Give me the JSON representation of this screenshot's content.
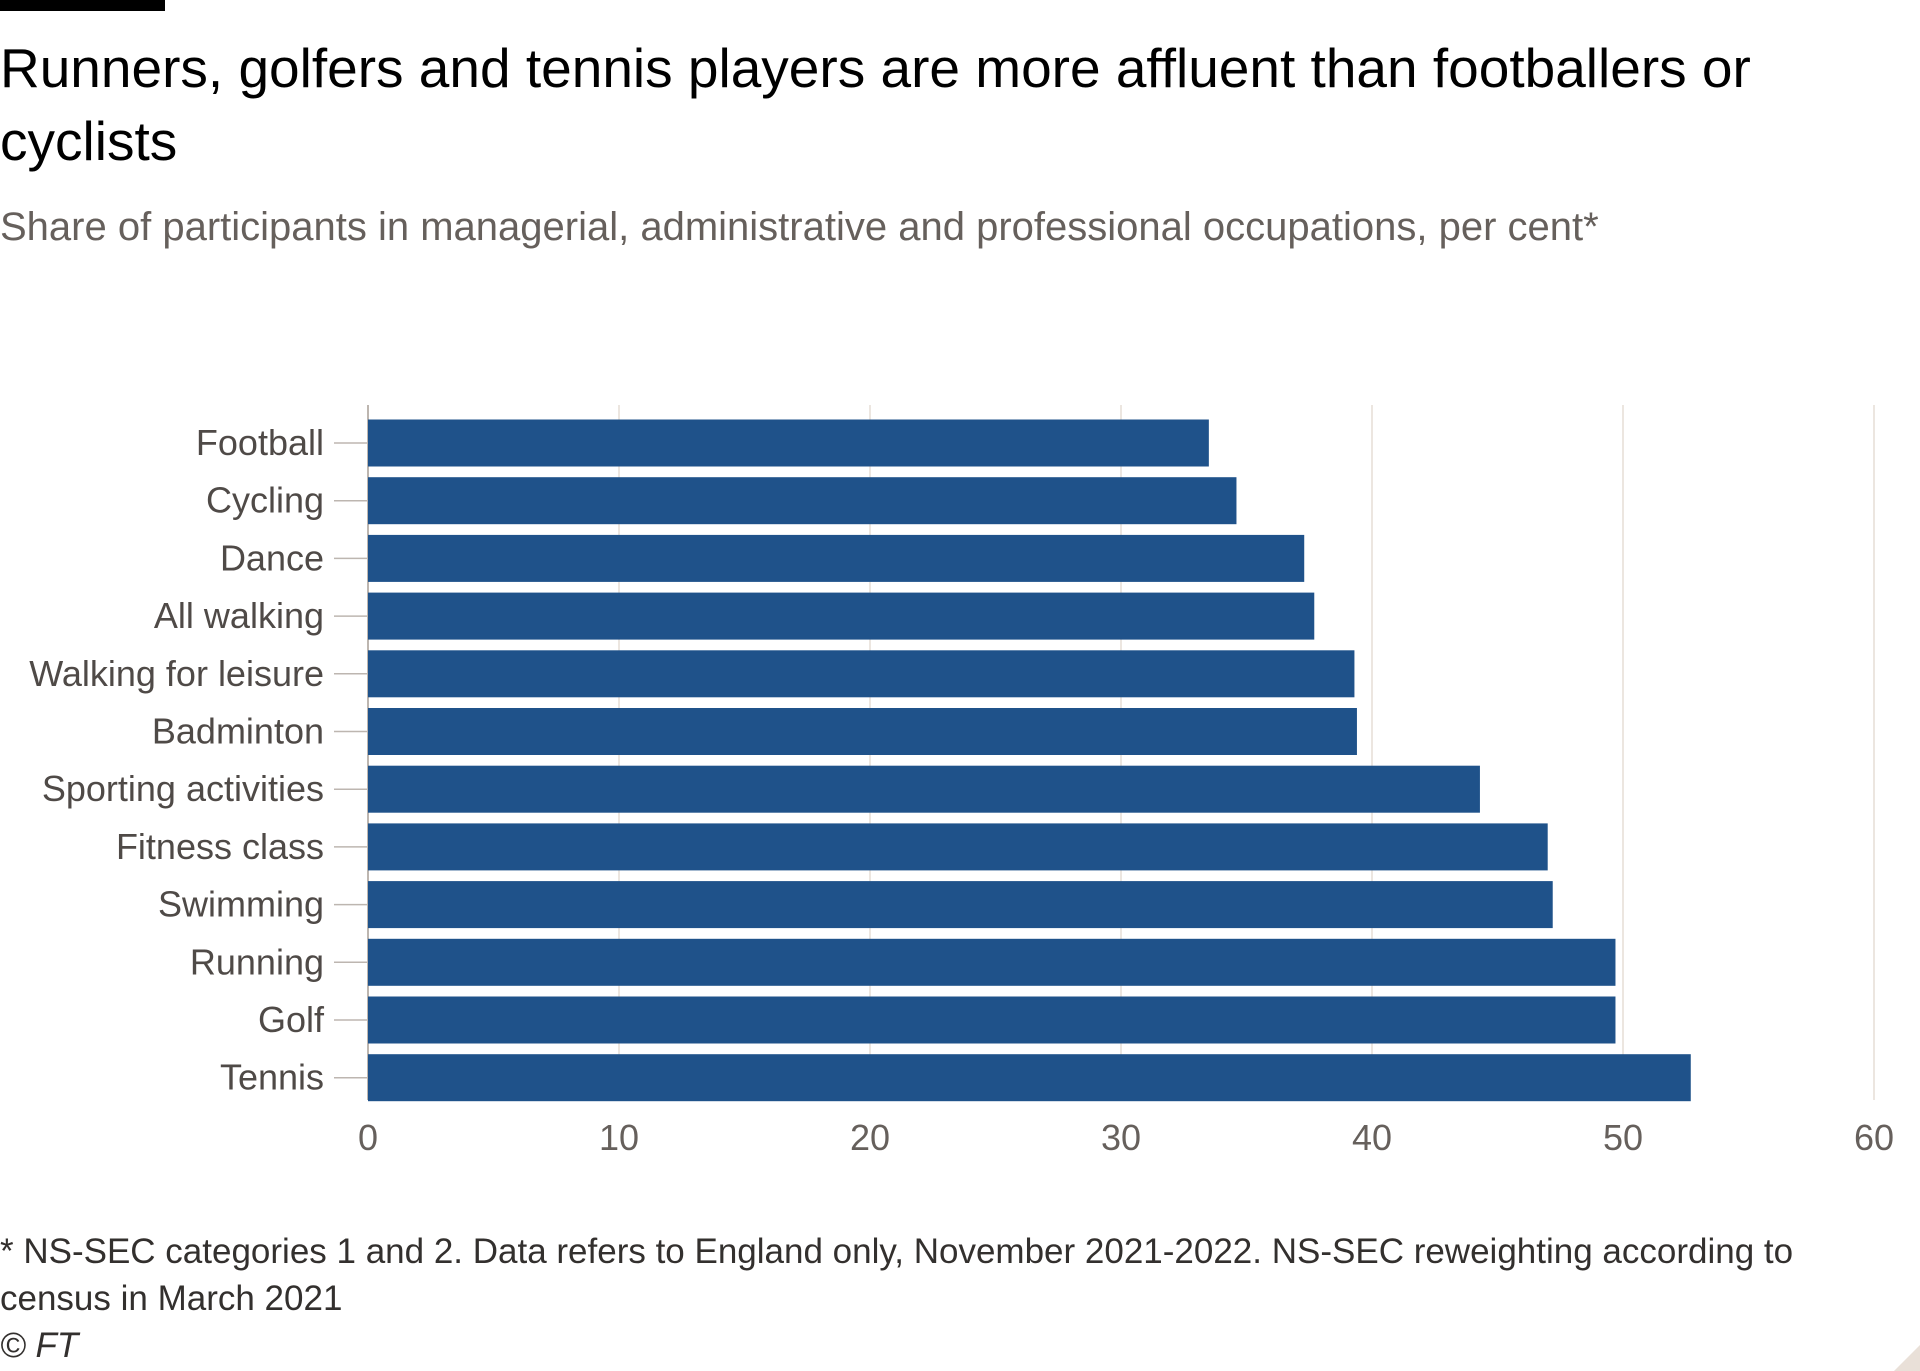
{
  "header": {
    "title": "Runners, golfers and tennis players are more affluent than footballers or cyclists",
    "subtitle": "Share of participants in managerial, administrative and professional occupations, per cent*"
  },
  "footer": {
    "note_line1": "* NS-SEC categories 1 and 2. Data refers to England only, November 2021-2022. NS-SEC reweighting according to",
    "note_line2": "census in March 2021",
    "source": "© FT"
  },
  "colors": {
    "bar": "#1f528a",
    "grid": "#e6ddd5",
    "tick": "#bdb6b0",
    "axis_text": "#66605c",
    "category_text": "#4f4a47"
  },
  "chart_data": {
    "type": "bar",
    "orientation": "horizontal",
    "categories": [
      "Football",
      "Cycling",
      "Dance",
      "All walking",
      "Walking for leisure",
      "Badminton",
      "Sporting activities",
      "Fitness class",
      "Swimming",
      "Running",
      "Golf",
      "Tennis"
    ],
    "values": [
      33.5,
      34.6,
      37.3,
      37.7,
      39.3,
      39.4,
      44.3,
      47.0,
      47.2,
      49.7,
      49.7,
      52.7
    ],
    "xlim": [
      0,
      60
    ],
    "xticks": [
      0,
      10,
      20,
      30,
      40,
      50,
      60
    ],
    "title": "Runners, golfers and tennis players are more affluent than footballers or cyclists",
    "subtitle": "Share of participants in managerial, administrative and professional occupations, per cent*",
    "grid": "vertical",
    "legend": "none"
  }
}
